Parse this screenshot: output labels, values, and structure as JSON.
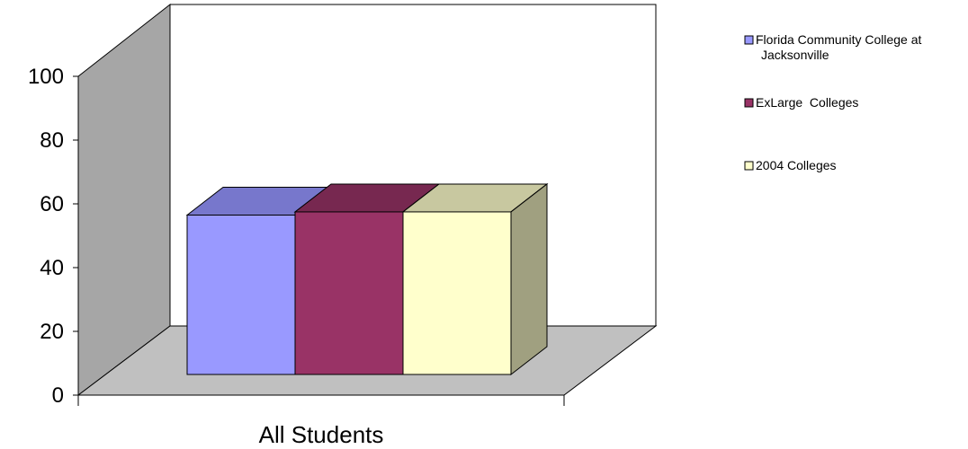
{
  "chart_data": {
    "type": "bar",
    "three_d": true,
    "categories": [
      "All Students"
    ],
    "series": [
      {
        "name": "Florida Community College at Jacksonville",
        "values": [
          50
        ],
        "color": "#9999ff",
        "top_color": "#7777cc",
        "side_color": "#7777cc"
      },
      {
        "name": "ExLarge  Colleges",
        "values": [
          51
        ],
        "color": "#993366",
        "top_color": "#772850",
        "side_color": "#772850"
      },
      {
        "name": "2004 Colleges",
        "values": [
          51
        ],
        "color": "#ffffcc",
        "top_color": "#c8c8a0",
        "side_color": "#a0a080"
      }
    ],
    "y_ticks": [
      0,
      20,
      40,
      60,
      80,
      100
    ],
    "ylim": [
      0,
      100
    ],
    "grid": false,
    "legend_position": "right",
    "title": "",
    "xlabel": "",
    "ylabel": "",
    "wall_color": "#a6a6a6",
    "floor_color": "#c0c0c0"
  },
  "legend": {
    "line1_of_first": "Florida Community College at",
    "line2_of_first": "Jacksonville"
  }
}
